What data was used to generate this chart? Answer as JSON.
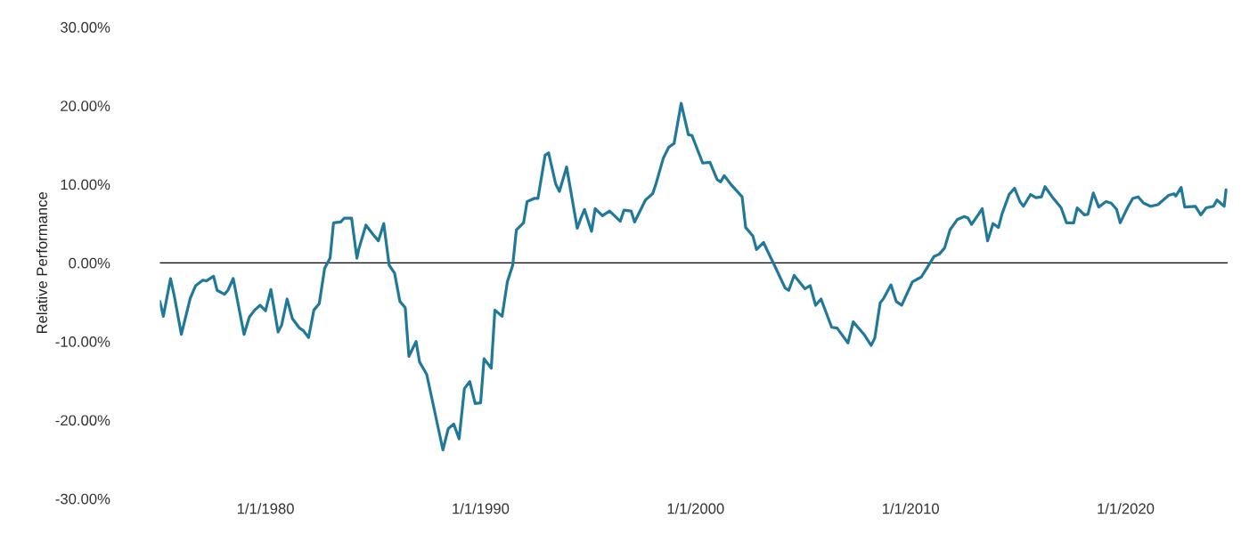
{
  "chart_data": {
    "type": "line",
    "ylabel": "Relative Performance",
    "x": [
      "1975-02",
      "1975-04",
      "1975-08",
      "1975-10",
      "1976-02",
      "1976-07",
      "1976-10",
      "1977-02",
      "1977-04",
      "1977-08",
      "1977-10",
      "1978-02",
      "1978-04",
      "1978-07",
      "1979-01",
      "1979-04",
      "1979-07",
      "1979-10",
      "1980-01",
      "1980-04",
      "1980-08",
      "1980-10",
      "1981-01",
      "1981-04",
      "1981-08",
      "1981-10",
      "1982-01",
      "1982-04",
      "1982-07",
      "1982-10",
      "1983-01",
      "1983-03",
      "1983-07",
      "1983-09",
      "1984-01",
      "1984-04",
      "1984-05",
      "1984-09",
      "1985-01",
      "1985-04",
      "1985-07",
      "1985-10",
      "1986-01",
      "1986-04",
      "1986-07",
      "1986-09",
      "1987-01",
      "1987-03",
      "1987-07",
      "1988-04",
      "1988-07",
      "1988-10",
      "1989-01",
      "1989-04",
      "1989-07",
      "1989-10",
      "1990-01",
      "1990-03",
      "1990-07",
      "1990-09",
      "1991-01",
      "1991-04",
      "1991-07",
      "1991-09",
      "1992-01",
      "1992-03",
      "1992-07",
      "1992-09",
      "1993-01",
      "1993-03",
      "1993-07",
      "1993-09",
      "1994-01",
      "1994-07",
      "1994-09",
      "1994-11",
      "1995-03",
      "1995-05",
      "1995-09",
      "1996-01",
      "1996-07",
      "1996-09",
      "1997-01",
      "1997-03",
      "1997-09",
      "1998-01",
      "1998-03",
      "1998-07",
      "1998-10",
      "1999-01",
      "1999-05",
      "1999-09",
      "1999-11",
      "2000-05",
      "2000-09",
      "2001-01",
      "2001-03",
      "2001-05",
      "2001-09",
      "2002-03",
      "2002-05",
      "2002-09",
      "2002-11",
      "2003-03",
      "2003-05",
      "2003-09",
      "2004-03",
      "2004-05",
      "2004-08",
      "2005-02",
      "2005-05",
      "2005-08",
      "2005-11",
      "2006-05",
      "2006-08",
      "2007-02",
      "2007-05",
      "2007-11",
      "2008-03",
      "2008-05",
      "2008-08",
      "2008-10",
      "2009-02",
      "2009-05",
      "2009-08",
      "2010-02",
      "2010-07",
      "2010-10",
      "2011-02",
      "2011-05",
      "2011-08",
      "2011-11",
      "2012-03",
      "2012-07",
      "2012-09",
      "2012-11",
      "2013-03",
      "2013-05",
      "2013-08",
      "2013-11",
      "2014-02",
      "2014-04",
      "2014-08",
      "2014-11",
      "2015-02",
      "2015-04",
      "2015-08",
      "2015-11",
      "2016-02",
      "2016-04",
      "2016-08",
      "2017-01",
      "2017-04",
      "2017-08",
      "2017-10",
      "2018-02",
      "2018-04",
      "2018-07",
      "2018-10",
      "2019-02",
      "2019-05",
      "2019-08",
      "2019-10",
      "2020-02",
      "2020-05",
      "2020-08",
      "2020-11",
      "2021-03",
      "2021-07",
      "2022-01",
      "2022-04",
      "2022-05",
      "2022-08",
      "2022-10",
      "2023-04",
      "2023-07",
      "2023-10",
      "2024-02",
      "2024-04",
      "2024-08",
      "2024-09"
    ],
    "series": [
      {
        "color": "#21799a",
        "values": [
          -4.9,
          -6.8,
          -2.0,
          -4.1,
          -9.1,
          -4.5,
          -2.9,
          -2.2,
          -2.3,
          -1.7,
          -3.5,
          -4.0,
          -3.5,
          -2.0,
          -9.1,
          -6.9,
          -6.0,
          -5.4,
          -6.1,
          -3.4,
          -8.8,
          -7.9,
          -4.6,
          -7.1,
          -8.3,
          -8.6,
          -9.5,
          -6.0,
          -5.2,
          -0.7,
          0.6,
          5.1,
          5.2,
          5.7,
          5.7,
          0.6,
          1.7,
          4.8,
          3.6,
          2.8,
          5.0,
          -0.3,
          -1.3,
          -4.9,
          -5.7,
          -11.9,
          -10.0,
          -12.6,
          -14.2,
          -23.8,
          -21.1,
          -20.5,
          -22.4,
          -16.0,
          -15.1,
          -17.9,
          -17.8,
          -12.2,
          -13.4,
          -6.0,
          -6.8,
          -2.4,
          -0.3,
          4.2,
          5.1,
          7.8,
          8.2,
          8.2,
          13.7,
          14.0,
          10.0,
          9.1,
          12.2,
          4.4,
          5.7,
          6.8,
          4.0,
          6.9,
          6.0,
          6.6,
          5.3,
          6.7,
          6.6,
          5.2,
          8.0,
          8.8,
          10.1,
          13.3,
          14.7,
          15.2,
          20.3,
          16.3,
          16.2,
          12.7,
          12.8,
          10.6,
          10.3,
          11.1,
          9.9,
          8.4,
          4.5,
          3.4,
          1.7,
          2.6,
          1.6,
          -0.3,
          -3.2,
          -3.5,
          -1.6,
          -3.3,
          -2.9,
          -5.4,
          -4.6,
          -8.2,
          -8.3,
          -10.2,
          -7.5,
          -9.1,
          -10.5,
          -9.6,
          -5.1,
          -4.5,
          -2.8,
          -4.9,
          -5.4,
          -2.4,
          -1.8,
          -0.7,
          0.8,
          1.1,
          1.9,
          4.2,
          5.5,
          5.9,
          5.7,
          4.9,
          6.2,
          6.9,
          2.8,
          5.0,
          4.5,
          6.2,
          8.7,
          9.5,
          7.8,
          7.2,
          8.7,
          8.3,
          8.4,
          9.7,
          8.4,
          7.0,
          5.1,
          5.1,
          7.0,
          6.1,
          6.2,
          8.9,
          7.1,
          7.8,
          7.6,
          6.8,
          5.1,
          7.0,
          8.2,
          8.4,
          7.6,
          7.2,
          7.4,
          8.6,
          8.8,
          8.5,
          9.6,
          7.1,
          7.2,
          6.1,
          7.0,
          7.2,
          8.0,
          7.2,
          9.3
        ]
      }
    ],
    "xlim": [
      "1975-02",
      "2024-10"
    ],
    "xticks": [
      {
        "value": "1980-01-01",
        "label": "1/1/1980"
      },
      {
        "value": "1990-01-01",
        "label": "1/1/1990"
      },
      {
        "value": "2000-01-01",
        "label": "1/1/2000"
      },
      {
        "value": "2010-01-01",
        "label": "1/1/2010"
      },
      {
        "value": "2020-01-01",
        "label": "1/1/2020"
      }
    ],
    "ylim": [
      -30,
      30
    ],
    "yticks": [
      {
        "value": -30,
        "label": "-30.00%"
      },
      {
        "value": -20,
        "label": "-20.00%"
      },
      {
        "value": -10,
        "label": "-10.00%"
      },
      {
        "value": 0,
        "label": "0.00%"
      },
      {
        "value": 10,
        "label": "10.00%"
      },
      {
        "value": 20,
        "label": "20.00%"
      },
      {
        "value": 30,
        "label": "30.00%"
      }
    ],
    "ref_lines": [
      {
        "axis": "y",
        "value": 0,
        "color": "#000000"
      }
    ],
    "grid": false,
    "legend": false
  }
}
